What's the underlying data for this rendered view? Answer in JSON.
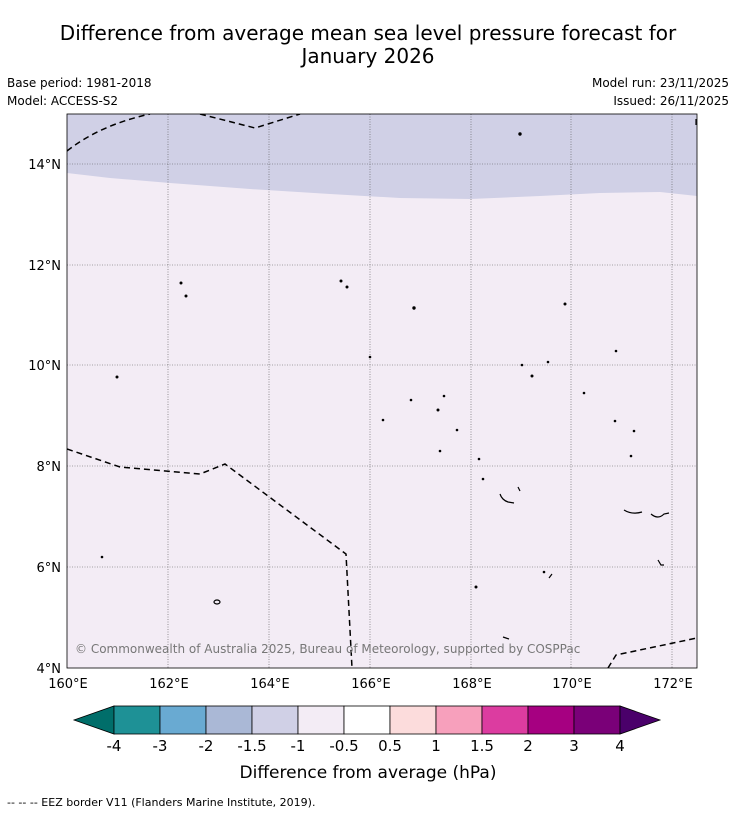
{
  "title_line1": "Difference from average mean sea level pressure forecast for",
  "title_line2": "January 2026",
  "base_period": "Base period: 1981-2018",
  "model": "Model: ACCESS-S2",
  "model_run": "Model run: 23/11/2025",
  "issued": "Issued: 26/11/2025",
  "lat_labels": [
    "4°N",
    "6°N",
    "8°N",
    "10°N",
    "12°N",
    "14°N"
  ],
  "lon_labels": [
    "160°E",
    "162°E",
    "164°E",
    "166°E",
    "168°E",
    "170°E",
    "172°E"
  ],
  "copyright": "© Commonwealth of Australia 2025, Bureau of Meteorology, supported by COSPPac",
  "colorbar": {
    "label": "Difference from average (hPa)",
    "ticks": [
      "-4",
      "-3",
      "-2",
      "-1.5",
      "-1",
      "-0.5",
      "0.5",
      "1",
      "1.5",
      "2",
      "3",
      "4"
    ],
    "colors": [
      "#006e6a",
      "#1e9196",
      "#69aad2",
      "#aab8d6",
      "#d0d0e6",
      "#f3ecf5",
      "#ffffff",
      "#fcdcdc",
      "#f7a0bc",
      "#dc3ca0",
      "#a60081",
      "#7a0078",
      "#4a006a"
    ]
  },
  "region_colors": {
    "band_-1.5_-1": "#d0d0e6",
    "band_-1_-0.5": "#f3ecf5"
  },
  "footer": "--  --  -- EEZ border V11 (Flanders Marine Institute, 2019)."
}
